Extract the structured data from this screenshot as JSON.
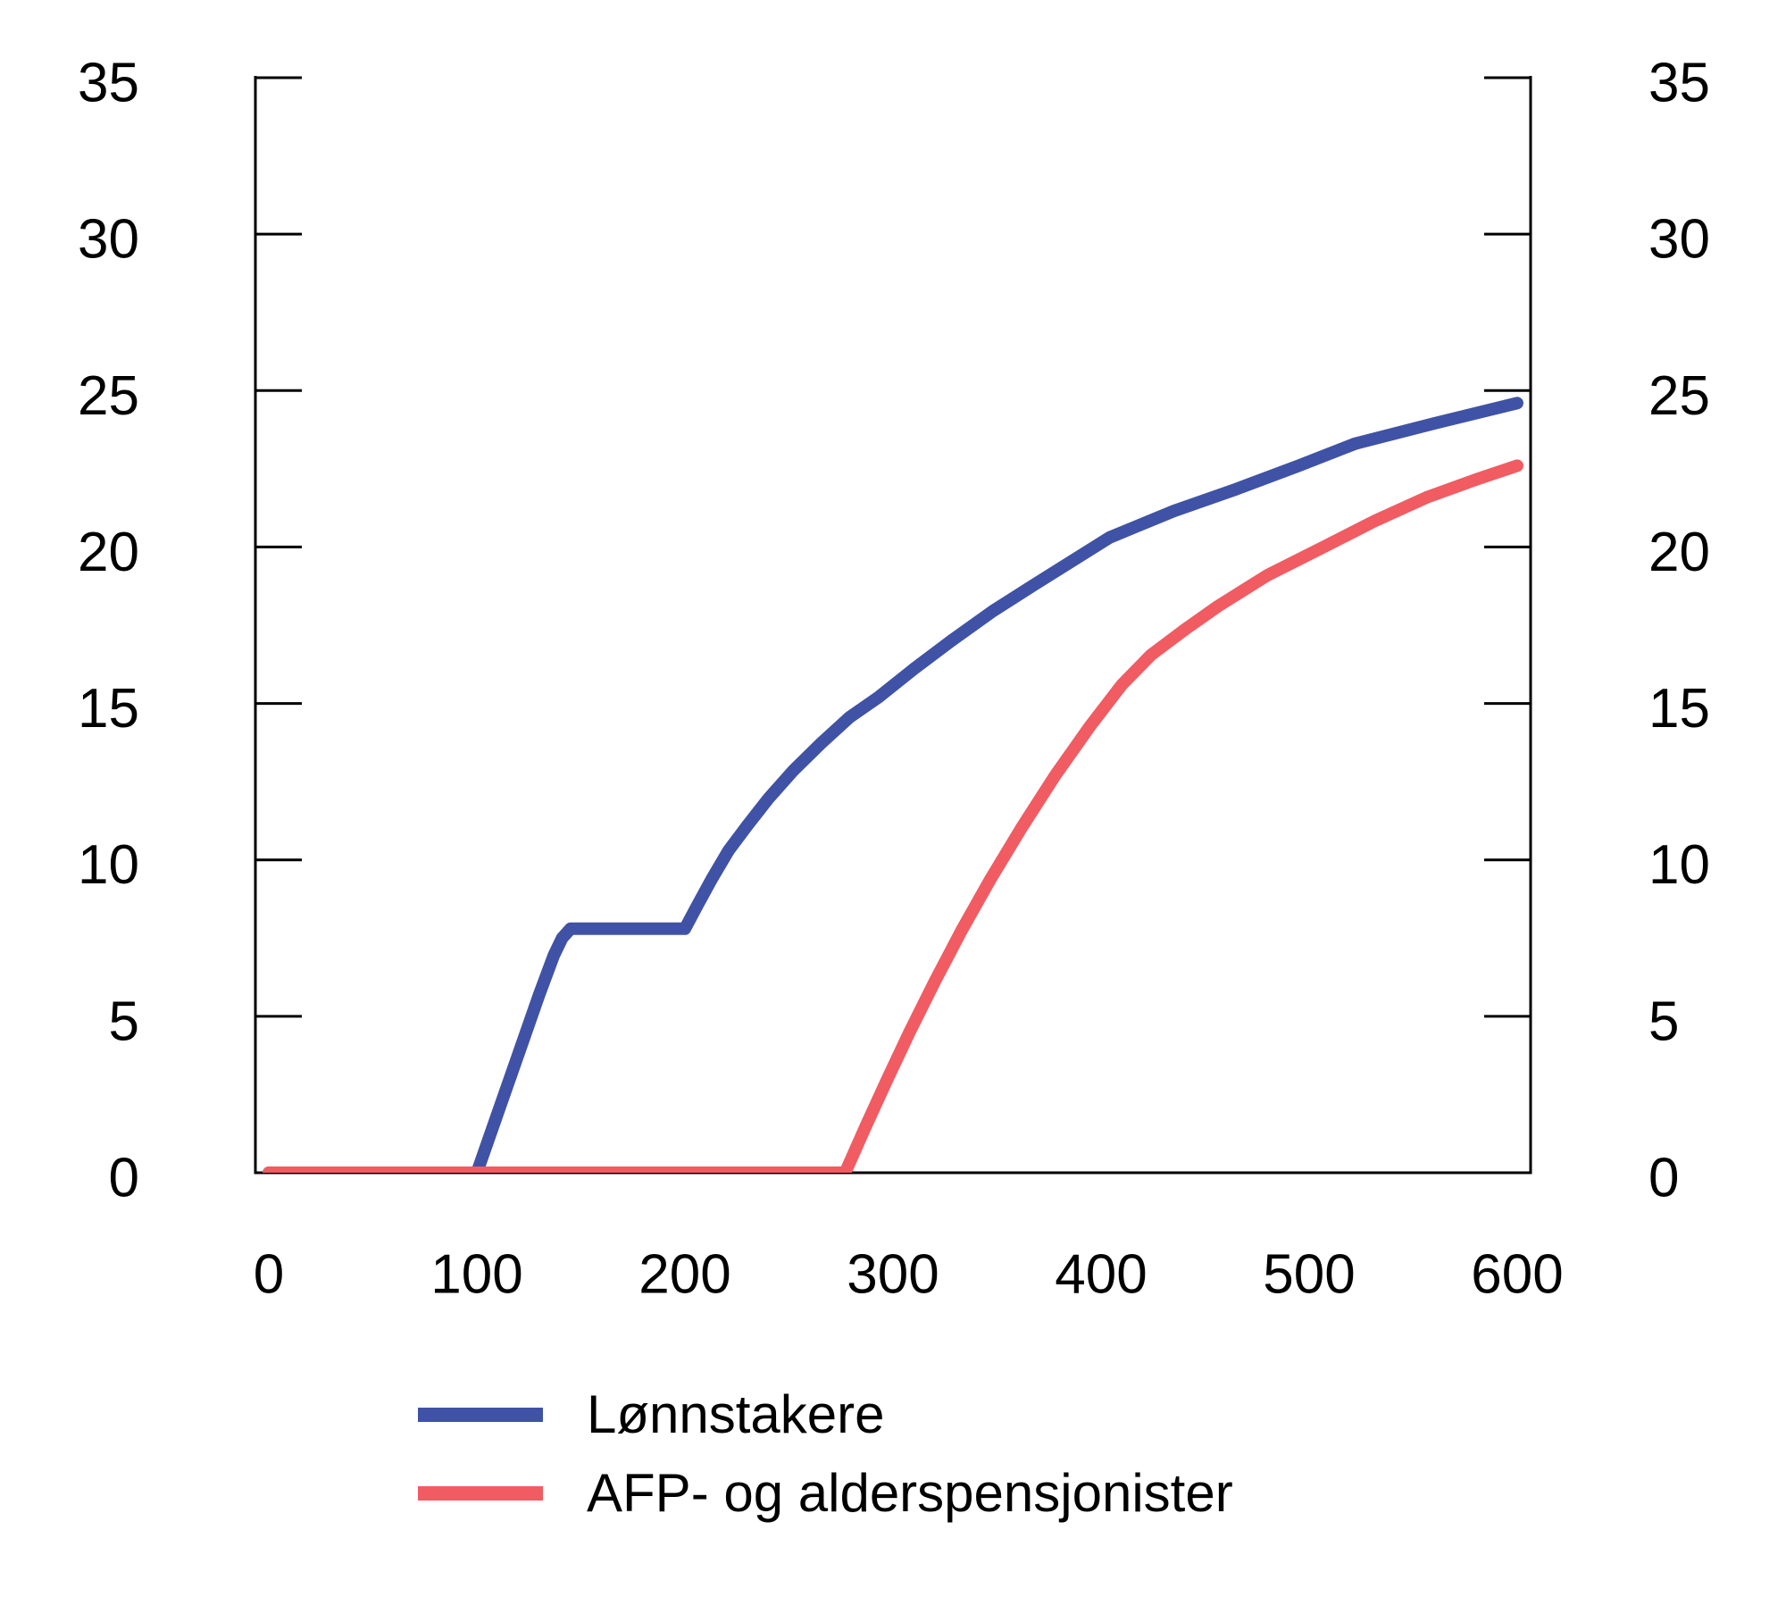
{
  "chart_data": {
    "type": "line",
    "title": "",
    "xlabel": "",
    "ylabel": "",
    "xlim": [
      0,
      600
    ],
    "ylim": [
      0,
      35
    ],
    "x_ticks": [
      0,
      100,
      200,
      300,
      400,
      500,
      600
    ],
    "y_ticks": [
      0,
      5,
      10,
      15,
      20,
      25,
      30,
      35
    ],
    "y_axis_mirrored_right": true,
    "grid": false,
    "legend_position": "bottom-left",
    "axis_color": "#000000",
    "series": [
      {
        "name": "Lønnstakere",
        "key": "lonnstakere",
        "color": "#3F52A5",
        "points": [
          [
            0,
            0
          ],
          [
            100,
            0
          ],
          [
            110,
            1.9
          ],
          [
            120,
            3.8
          ],
          [
            130,
            5.7
          ],
          [
            137,
            6.95
          ],
          [
            141,
            7.5
          ],
          [
            145,
            7.8
          ],
          [
            200,
            7.8
          ],
          [
            206,
            8.55
          ],
          [
            213,
            9.4
          ],
          [
            221,
            10.3
          ],
          [
            230,
            11.1
          ],
          [
            240,
            11.95
          ],
          [
            252,
            12.85
          ],
          [
            265,
            13.7
          ],
          [
            279,
            14.55
          ],
          [
            293,
            15.2
          ],
          [
            310,
            16.1
          ],
          [
            328,
            17.0
          ],
          [
            348,
            17.95
          ],
          [
            368,
            18.8
          ],
          [
            386,
            19.55
          ],
          [
            404,
            20.3
          ],
          [
            435,
            21.15
          ],
          [
            465,
            21.85
          ],
          [
            495,
            22.6
          ],
          [
            522,
            23.3
          ],
          [
            560,
            23.95
          ],
          [
            600,
            24.6
          ]
        ]
      },
      {
        "name": "AFP- og alderspensjonister",
        "key": "afp-og-alderspensjonister",
        "color": "#F15B62",
        "points": [
          [
            0,
            0
          ],
          [
            277,
            0
          ],
          [
            287,
            1.5
          ],
          [
            297,
            2.95
          ],
          [
            308,
            4.5
          ],
          [
            320,
            6.1
          ],
          [
            333,
            7.75
          ],
          [
            347,
            9.4
          ],
          [
            362,
            11.05
          ],
          [
            378,
            12.7
          ],
          [
            395,
            14.3
          ],
          [
            410,
            15.6
          ],
          [
            424,
            16.55
          ],
          [
            440,
            17.35
          ],
          [
            456,
            18.1
          ],
          [
            480,
            19.1
          ],
          [
            507,
            20.0
          ],
          [
            532,
            20.85
          ],
          [
            557,
            21.6
          ],
          [
            580,
            22.15
          ],
          [
            600,
            22.6
          ]
        ]
      }
    ]
  },
  "legend": {
    "items": [
      {
        "key": "lonnstakere",
        "label": "Lønnstakere",
        "color": "#3F52A5"
      },
      {
        "key": "afp-og-alderspensjonister",
        "label": "AFP- og alderspensjonister",
        "color": "#F15B62"
      }
    ]
  }
}
